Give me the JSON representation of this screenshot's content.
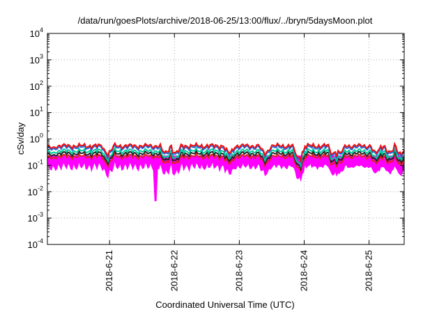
{
  "chart_data": {
    "type": "line",
    "title": "/data/run/goesPlots/archive/2018-06-25/13:00/flux/../bryn/5daysMoon.plot",
    "xlabel": "Coordinated Universal Time (UTC)",
    "ylabel": "cSv/day",
    "y_scale": "log",
    "ylim_exponents": [
      -4,
      4
    ],
    "y_tick_labels": [
      {
        "base": "10",
        "exp": "-4"
      },
      {
        "base": "10",
        "exp": "-3"
      },
      {
        "base": "10",
        "exp": "-2"
      },
      {
        "base": "10",
        "exp": "-1"
      },
      {
        "base": "10",
        "exp": "0"
      },
      {
        "base": "10",
        "exp": "1"
      },
      {
        "base": "10",
        "exp": "2"
      },
      {
        "base": "10",
        "exp": "3"
      },
      {
        "base": "10",
        "exp": "4"
      }
    ],
    "x_range_days": [
      "2018-06-20 01:00",
      "2018-06-25 13:00"
    ],
    "x_ticks": [
      "2018-6-21",
      "2018-6-22",
      "2018-6-23",
      "2018-6-24",
      "2018-6-25"
    ],
    "grid": true,
    "grid_style": "dotted",
    "series": [
      {
        "color": "#ff00ff",
        "fill": true,
        "level": 0.12,
        "dips": [
          {
            "date": "2018-06-21 17:00",
            "value": 0.0045
          }
        ]
      },
      {
        "color": "#dd2222",
        "level": 0.22
      },
      {
        "color": "#222222",
        "level": 0.28
      },
      {
        "color": "#00cc99",
        "level": 0.35
      },
      {
        "color": "#2266dd",
        "level": 0.48
      },
      {
        "color": "#ee1111",
        "level": 0.55
      }
    ]
  }
}
